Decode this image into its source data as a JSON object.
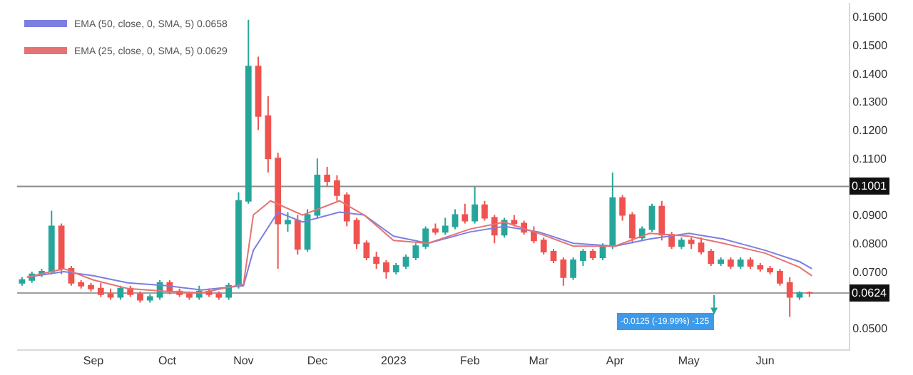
{
  "chart_data": {
    "type": "candlestick",
    "colors": [
      "#26a69a",
      "#26a69a",
      "#26a69a",
      "#26a69a",
      "#ef5350",
      "#ef5350",
      "#ef5350",
      "#ef5350",
      "#ef5350",
      "#ef5350",
      "#26a69a",
      "#ef5350",
      "#ef5350",
      "#26a69a",
      "#26a69a",
      "#ef5350",
      "#ef5350",
      "#ef5350",
      "#26a69a",
      "#ef5350",
      "#ef5350",
      "#26a69a",
      "#26a69a",
      "#26a69a",
      "#ef5350",
      "#ef5350",
      "#ef5350",
      "#26a69a",
      "#ef5350",
      "#26a69a",
      "#26a69a",
      "#ef5350",
      "#ef5350",
      "#ef5350",
      "#ef5350",
      "#ef5350",
      "#ef5350",
      "#ef5350",
      "#26a69a",
      "#26a69a",
      "#26a69a",
      "#26a69a",
      "#ef5350",
      "#26a69a",
      "#26a69a",
      "#ef5350",
      "#26a69a",
      "#ef5350",
      "#ef5350",
      "#26a69a",
      "#ef5350",
      "#ef5350",
      "#ef5350",
      "#ef5350",
      "#ef5350",
      "#ef5350",
      "#26a69a",
      "#26a69a",
      "#ef5350",
      "#26a69a",
      "#26a69a",
      "#ef5350",
      "#ef5350",
      "#26a69a",
      "#26a69a",
      "#ef5350",
      "#ef5350",
      "#26a69a",
      "#ef5350",
      "#ef5350",
      "#ef5350",
      "#26a69a",
      "#ef5350",
      "#26a69a",
      "#ef5350",
      "#ef5350",
      "#ef5350",
      "#ef5350",
      "#ef5350",
      "#26a69a",
      "#ef5350"
    ],
    "x": [
      "2022-08-03",
      "2022-08-07",
      "2022-08-11",
      "2022-08-15",
      "2022-08-19",
      "2022-08-23",
      "2022-08-27",
      "2022-08-31",
      "2022-09-04",
      "2022-09-08",
      "2022-09-12",
      "2022-09-16",
      "2022-09-20",
      "2022-09-24",
      "2022-09-28",
      "2022-10-02",
      "2022-10-06",
      "2022-10-10",
      "2022-10-14",
      "2022-10-18",
      "2022-10-22",
      "2022-10-26",
      "2022-10-30",
      "2022-11-03",
      "2022-11-07",
      "2022-11-11",
      "2022-11-15",
      "2022-11-19",
      "2022-11-23",
      "2022-11-27",
      "2022-12-01",
      "2022-12-05",
      "2022-12-09",
      "2022-12-13",
      "2022-12-17",
      "2022-12-21",
      "2022-12-25",
      "2022-12-29",
      "2023-01-02",
      "2023-01-06",
      "2023-01-10",
      "2023-01-14",
      "2023-01-18",
      "2023-01-22",
      "2023-01-26",
      "2023-01-30",
      "2023-02-03",
      "2023-02-07",
      "2023-02-11",
      "2023-02-15",
      "2023-02-19",
      "2023-02-23",
      "2023-02-27",
      "2023-03-03",
      "2023-03-07",
      "2023-03-11",
      "2023-03-15",
      "2023-03-19",
      "2023-03-23",
      "2023-03-27",
      "2023-03-31",
      "2023-04-04",
      "2023-04-08",
      "2023-04-12",
      "2023-04-16",
      "2023-04-20",
      "2023-04-24",
      "2023-04-28",
      "2023-05-02",
      "2023-05-06",
      "2023-05-10",
      "2023-05-14",
      "2023-05-18",
      "2023-05-22",
      "2023-05-26",
      "2023-05-30",
      "2023-06-03",
      "2023-06-07",
      "2023-06-11",
      "2023-06-15",
      "2023-06-19"
    ],
    "ohlc": [
      [
        0.066,
        0.068,
        0.065,
        0.067
      ],
      [
        0.067,
        0.07,
        0.066,
        0.069
      ],
      [
        0.069,
        0.071,
        0.068,
        0.07
      ],
      [
        0.07,
        0.0915,
        0.069,
        0.086
      ],
      [
        0.086,
        0.087,
        0.069,
        0.071
      ],
      [
        0.071,
        0.072,
        0.065,
        0.066
      ],
      [
        0.066,
        0.067,
        0.064,
        0.065
      ],
      [
        0.065,
        0.066,
        0.063,
        0.064
      ],
      [
        0.064,
        0.066,
        0.061,
        0.062
      ],
      [
        0.062,
        0.064,
        0.06,
        0.061
      ],
      [
        0.061,
        0.065,
        0.06,
        0.064
      ],
      [
        0.064,
        0.065,
        0.061,
        0.062
      ],
      [
        0.062,
        0.063,
        0.059,
        0.06
      ],
      [
        0.06,
        0.062,
        0.059,
        0.061
      ],
      [
        0.061,
        0.067,
        0.06,
        0.066
      ],
      [
        0.066,
        0.067,
        0.062,
        0.063
      ],
      [
        0.063,
        0.064,
        0.061,
        0.062
      ],
      [
        0.062,
        0.063,
        0.06,
        0.061
      ],
      [
        0.061,
        0.065,
        0.06,
        0.063
      ],
      [
        0.063,
        0.064,
        0.061,
        0.062
      ],
      [
        0.062,
        0.063,
        0.06,
        0.061
      ],
      [
        0.061,
        0.066,
        0.06,
        0.065
      ],
      [
        0.065,
        0.098,
        0.064,
        0.095
      ],
      [
        0.095,
        0.159,
        0.094,
        0.1425
      ],
      [
        0.1425,
        0.146,
        0.12,
        0.125
      ],
      [
        0.125,
        0.132,
        0.105,
        0.11
      ],
      [
        0.11,
        0.112,
        0.071,
        0.087
      ],
      [
        0.087,
        0.091,
        0.084,
        0.088
      ],
      [
        0.088,
        0.09,
        0.076,
        0.078
      ],
      [
        0.078,
        0.092,
        0.077,
        0.09
      ],
      [
        0.09,
        0.11,
        0.089,
        0.104
      ],
      [
        0.104,
        0.107,
        0.1,
        0.102
      ],
      [
        0.102,
        0.104,
        0.095,
        0.097
      ],
      [
        0.097,
        0.098,
        0.086,
        0.088
      ],
      [
        0.088,
        0.089,
        0.078,
        0.08
      ],
      [
        0.08,
        0.081,
        0.074,
        0.075
      ],
      [
        0.075,
        0.077,
        0.071,
        0.073
      ],
      [
        0.073,
        0.074,
        0.0675,
        0.07
      ],
      [
        0.07,
        0.073,
        0.069,
        0.072
      ],
      [
        0.072,
        0.076,
        0.071,
        0.075
      ],
      [
        0.075,
        0.08,
        0.074,
        0.079
      ],
      [
        0.079,
        0.086,
        0.078,
        0.085
      ],
      [
        0.085,
        0.087,
        0.083,
        0.084
      ],
      [
        0.084,
        0.089,
        0.083,
        0.086
      ],
      [
        0.086,
        0.092,
        0.085,
        0.09
      ],
      [
        0.09,
        0.094,
        0.087,
        0.088
      ],
      [
        0.088,
        0.1,
        0.087,
        0.0935
      ],
      [
        0.0935,
        0.095,
        0.088,
        0.089
      ],
      [
        0.089,
        0.09,
        0.08,
        0.083
      ],
      [
        0.083,
        0.089,
        0.082,
        0.088
      ],
      [
        0.088,
        0.09,
        0.086,
        0.087
      ],
      [
        0.087,
        0.088,
        0.083,
        0.084
      ],
      [
        0.084,
        0.086,
        0.08,
        0.081
      ],
      [
        0.081,
        0.082,
        0.076,
        0.077
      ],
      [
        0.077,
        0.078,
        0.073,
        0.074
      ],
      [
        0.074,
        0.075,
        0.065,
        0.068
      ],
      [
        0.068,
        0.075,
        0.067,
        0.074
      ],
      [
        0.074,
        0.078,
        0.072,
        0.077
      ],
      [
        0.077,
        0.078,
        0.074,
        0.075
      ],
      [
        0.075,
        0.08,
        0.074,
        0.079
      ],
      [
        0.079,
        0.105,
        0.078,
        0.096
      ],
      [
        0.096,
        0.097,
        0.088,
        0.09
      ],
      [
        0.09,
        0.091,
        0.08,
        0.082
      ],
      [
        0.082,
        0.086,
        0.081,
        0.085
      ],
      [
        0.085,
        0.094,
        0.084,
        0.093
      ],
      [
        0.093,
        0.095,
        0.081,
        0.083
      ],
      [
        0.083,
        0.084,
        0.078,
        0.079
      ],
      [
        0.079,
        0.082,
        0.078,
        0.081
      ],
      [
        0.081,
        0.082,
        0.078,
        0.08
      ],
      [
        0.08,
        0.082,
        0.076,
        0.077
      ],
      [
        0.077,
        0.078,
        0.072,
        0.073
      ],
      [
        0.073,
        0.075,
        0.072,
        0.074
      ],
      [
        0.074,
        0.075,
        0.071,
        0.072
      ],
      [
        0.072,
        0.075,
        0.071,
        0.074
      ],
      [
        0.074,
        0.075,
        0.071,
        0.072
      ],
      [
        0.072,
        0.073,
        0.07,
        0.071
      ],
      [
        0.071,
        0.072,
        0.069,
        0.07
      ],
      [
        0.07,
        0.071,
        0.065,
        0.066
      ],
      [
        0.066,
        0.068,
        0.054,
        0.061
      ],
      [
        0.061,
        0.063,
        0.06,
        0.0625
      ],
      [
        0.0625,
        0.063,
        0.061,
        0.0624
      ]
    ],
    "series": [
      {
        "name": "EMA (50, close, 0, SMA, 5) 0.0658",
        "type": "line",
        "color": "#7b7fe0",
        "x": [
          "2022-08-05",
          "2022-08-20",
          "2022-09-01",
          "2022-09-15",
          "2022-10-01",
          "2022-10-15",
          "2022-11-01",
          "2022-11-05",
          "2022-11-15",
          "2022-11-25",
          "2022-12-10",
          "2022-12-20",
          "2023-01-01",
          "2023-01-15",
          "2023-02-01",
          "2023-02-15",
          "2023-03-01",
          "2023-03-15",
          "2023-04-01",
          "2023-04-15",
          "2023-05-01",
          "2023-05-15",
          "2023-06-01",
          "2023-06-15",
          "2023-06-20"
        ],
        "values": [
          0.068,
          0.07,
          0.0685,
          0.066,
          0.065,
          0.0635,
          0.065,
          0.0775,
          0.091,
          0.0875,
          0.091,
          0.09,
          0.0825,
          0.08,
          0.084,
          0.086,
          0.084,
          0.08,
          0.079,
          0.0815,
          0.0835,
          0.0815,
          0.0775,
          0.0735,
          0.071
        ]
      },
      {
        "name": "EMA (25, close, 0, SMA, 5) 0.0629",
        "type": "line",
        "color": "#e57373",
        "x": [
          "2022-08-05",
          "2022-08-20",
          "2022-09-01",
          "2022-09-15",
          "2022-10-01",
          "2022-10-15",
          "2022-11-01",
          "2022-11-05",
          "2022-11-12",
          "2022-11-25",
          "2022-12-10",
          "2022-12-20",
          "2023-01-01",
          "2023-01-15",
          "2023-02-01",
          "2023-02-15",
          "2023-03-01",
          "2023-03-15",
          "2023-04-01",
          "2023-04-15",
          "2023-05-01",
          "2023-05-15",
          "2023-06-01",
          "2023-06-15",
          "2023-06-20"
        ],
        "values": [
          0.068,
          0.071,
          0.067,
          0.064,
          0.063,
          0.0625,
          0.0655,
          0.09,
          0.095,
          0.09,
          0.095,
          0.09,
          0.081,
          0.08,
          0.085,
          0.0875,
          0.0835,
          0.079,
          0.079,
          0.0835,
          0.0825,
          0.08,
          0.0765,
          0.0715,
          0.0685
        ]
      }
    ],
    "xlim": [
      "2022-08-01",
      "2023-07-05"
    ],
    "xticks": [
      {
        "value": "2022-09-01",
        "label": "Sep"
      },
      {
        "value": "2022-10-01",
        "label": "Oct"
      },
      {
        "value": "2022-11-01",
        "label": "Nov"
      },
      {
        "value": "2022-12-01",
        "label": "Dec"
      },
      {
        "value": "2023-01-01",
        "label": "2023"
      },
      {
        "value": "2023-02-01",
        "label": "Feb"
      },
      {
        "value": "2023-03-01",
        "label": "Mar"
      },
      {
        "value": "2023-04-01",
        "label": "Apr"
      },
      {
        "value": "2023-05-01",
        "label": "May"
      },
      {
        "value": "2023-06-01",
        "label": "Jun"
      }
    ],
    "ylim": [
      0.0425,
      0.165
    ],
    "yticks": [
      {
        "value": 0.05,
        "label": "0.0500"
      },
      {
        "value": 0.07,
        "label": "0.0700"
      },
      {
        "value": 0.08,
        "label": "0.0800"
      },
      {
        "value": 0.09,
        "label": "0.0900"
      },
      {
        "value": 0.11,
        "label": "0.1100"
      },
      {
        "value": 0.12,
        "label": "0.1200"
      },
      {
        "value": 0.13,
        "label": "0.1300"
      },
      {
        "value": 0.14,
        "label": "0.1400"
      },
      {
        "value": 0.15,
        "label": "0.1500"
      },
      {
        "value": 0.16,
        "label": "0.1600"
      }
    ],
    "ref_lines": [
      {
        "axis": "y",
        "value": 0.1001,
        "label": "0.1001",
        "color": "#8c8c8c"
      },
      {
        "axis": "y",
        "value": 0.0624,
        "label": "0.0624",
        "color": "#9e9e9e"
      }
    ],
    "annotations": [
      "-0.0125 (-19.99%) -125"
    ],
    "legend": "top left"
  }
}
